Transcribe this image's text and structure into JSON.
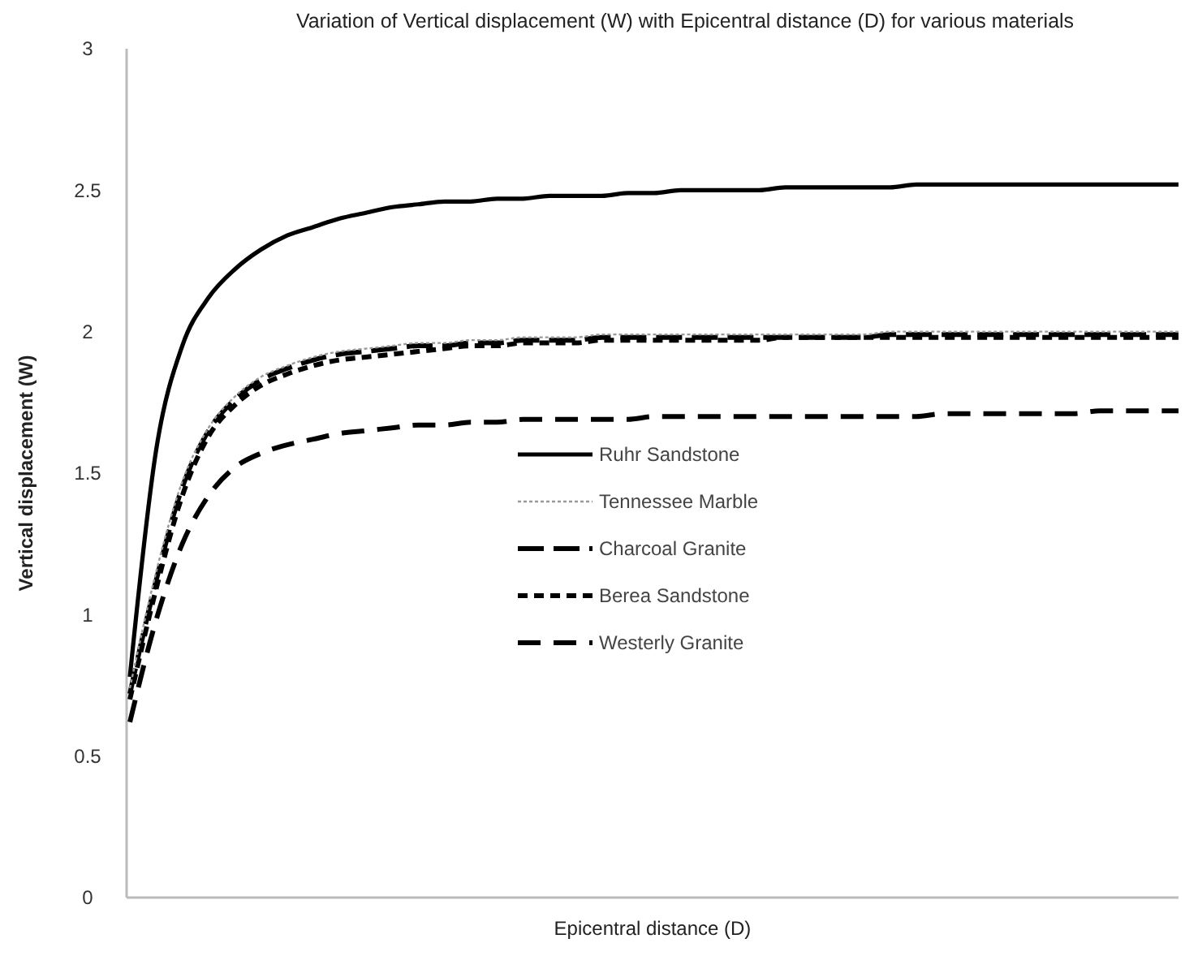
{
  "chart_data": {
    "type": "line",
    "title": "Variation of Vertical displacement (W) with Epicentral distance (D) for various materials",
    "xlabel": "Epicentral distance (D)",
    "ylabel": "Vertical displacement  (W)",
    "categories": [
      null,
      null,
      null,
      null,
      null,
      null,
      null,
      null,
      null,
      null,
      null,
      null,
      null,
      null,
      null,
      null,
      null,
      null,
      null,
      null,
      null,
      null,
      null,
      null,
      null,
      null,
      null,
      null,
      null,
      null,
      null,
      null,
      null,
      null,
      null,
      null,
      null,
      null,
      null,
      null,
      null
    ],
    "ylim": [
      0,
      3
    ],
    "yticks": [
      0,
      0.5,
      1,
      1.5,
      2,
      2.5,
      3
    ],
    "tick_labels": "y",
    "grid": false,
    "legend": "center",
    "marker": "none",
    "series": [
      {
        "name": "Ruhr Sandstone",
        "color": "#000000",
        "line_style": "solid",
        "values": [
          0.78,
          1.58,
          1.95,
          2.12,
          2.22,
          2.29,
          2.34,
          2.37,
          2.4,
          2.42,
          2.44,
          2.45,
          2.46,
          2.46,
          2.47,
          2.47,
          2.48,
          2.48,
          2.48,
          2.49,
          2.49,
          2.5,
          2.5,
          2.5,
          2.5,
          2.51,
          2.51,
          2.51,
          2.51,
          2.51,
          2.52,
          2.52,
          2.52,
          2.52,
          2.52,
          2.52,
          2.52,
          2.52,
          2.52,
          2.52,
          2.52
        ]
      },
      {
        "name": "Tennessee Marble",
        "color": "#999999",
        "line_style": "dotted",
        "values": [
          0.74,
          1.15,
          1.47,
          1.66,
          1.77,
          1.84,
          1.88,
          1.91,
          1.93,
          1.94,
          1.95,
          1.96,
          1.96,
          1.97,
          1.97,
          1.98,
          1.98,
          1.98,
          1.99,
          1.99,
          1.99,
          1.99,
          1.99,
          1.99,
          1.99,
          1.99,
          1.99,
          1.99,
          1.99,
          2,
          2,
          2,
          2,
          2,
          2,
          2,
          2,
          2,
          2,
          2,
          2
        ]
      },
      {
        "name": "Charcoal Granite",
        "color": "#000000",
        "line_style": "dashed",
        "values": [
          0.72,
          1.12,
          1.45,
          1.65,
          1.76,
          1.83,
          1.87,
          1.9,
          1.92,
          1.93,
          1.94,
          1.95,
          1.95,
          1.96,
          1.96,
          1.97,
          1.97,
          1.97,
          1.98,
          1.98,
          1.98,
          1.98,
          1.98,
          1.98,
          1.98,
          1.98,
          1.98,
          1.98,
          1.98,
          1.99,
          1.99,
          1.99,
          1.99,
          1.99,
          1.99,
          1.99,
          1.99,
          1.99,
          1.99,
          1.99,
          1.99
        ]
      },
      {
        "name": "Berea Sandstone",
        "color": "#000000",
        "line_style": "dashed",
        "values": [
          0.7,
          1.09,
          1.42,
          1.63,
          1.74,
          1.81,
          1.85,
          1.88,
          1.9,
          1.91,
          1.92,
          1.93,
          1.94,
          1.95,
          1.95,
          1.96,
          1.96,
          1.96,
          1.97,
          1.97,
          1.97,
          1.97,
          1.97,
          1.97,
          1.97,
          1.98,
          1.98,
          1.98,
          1.98,
          1.98,
          1.98,
          1.98,
          1.98,
          1.98,
          1.98,
          1.98,
          1.98,
          1.98,
          1.98,
          1.98,
          1.98
        ]
      },
      {
        "name": "Westerly Granite",
        "color": "#000000",
        "line_style": "dashed",
        "values": [
          0.62,
          0.98,
          1.25,
          1.42,
          1.52,
          1.57,
          1.6,
          1.62,
          1.64,
          1.65,
          1.66,
          1.67,
          1.67,
          1.68,
          1.68,
          1.69,
          1.69,
          1.69,
          1.69,
          1.69,
          1.7,
          1.7,
          1.7,
          1.7,
          1.7,
          1.7,
          1.7,
          1.7,
          1.7,
          1.7,
          1.7,
          1.71,
          1.71,
          1.71,
          1.71,
          1.71,
          1.71,
          1.72,
          1.72,
          1.72,
          1.72
        ]
      }
    ]
  }
}
